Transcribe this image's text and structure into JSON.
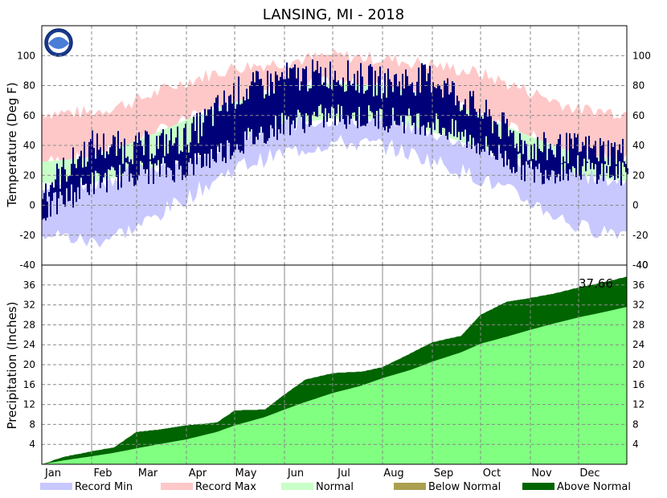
{
  "colors": {
    "record_min": "#c8c8ff",
    "record_max": "#ffc8c8",
    "normal": "#c8ffc8",
    "observed": "#000078",
    "normal_precip": "#80ff80",
    "above_normal": "#006400",
    "below_normal": "#aaa050",
    "grid": "#8a8a8a"
  },
  "logo": {
    "text": "NOAA",
    "icon": "noaa-logo-icon"
  },
  "chart_data": [
    {
      "type": "area",
      "title": "LANSING, MI - 2018",
      "xlabel": "",
      "ylabel": "Temperature (Deg F)",
      "ylim": [
        -40,
        120
      ],
      "yticks": [
        -40,
        -20,
        0,
        20,
        40,
        60,
        80,
        100
      ],
      "categories": [
        "Jan",
        "Feb",
        "Mar",
        "Apr",
        "May",
        "Jun",
        "Jul",
        "Aug",
        "Sep",
        "Oct",
        "Nov",
        "Dec"
      ],
      "grid": true,
      "x": [
        1,
        32,
        60,
        91,
        121,
        152,
        182,
        213,
        244,
        274,
        305,
        335,
        365
      ],
      "series": [
        {
          "name": "Record Max",
          "values": [
            62,
            62,
            70,
            83,
            92,
            96,
            100,
            98,
            94,
            88,
            76,
            64,
            62
          ]
        },
        {
          "name": "Normal High",
          "values": [
            29,
            32,
            43,
            57,
            69,
            78,
            82,
            80,
            73,
            60,
            46,
            34,
            30
          ]
        },
        {
          "name": "Normal Low",
          "values": [
            15,
            15,
            22,
            33,
            44,
            54,
            58,
            57,
            49,
            38,
            29,
            20,
            16
          ]
        },
        {
          "name": "Record Min",
          "values": [
            -18,
            -25,
            -15,
            5,
            25,
            35,
            42,
            40,
            30,
            18,
            2,
            -15,
            -18
          ]
        },
        {
          "name": "Observed High",
          "values": [
            10,
            40,
            38,
            45,
            75,
            85,
            88,
            82,
            85,
            62,
            38,
            38,
            35
          ]
        },
        {
          "name": "Observed Low",
          "values": [
            -5,
            15,
            22,
            25,
            40,
            55,
            60,
            58,
            55,
            40,
            22,
            25,
            20
          ]
        }
      ]
    },
    {
      "type": "area",
      "xlabel": "",
      "ylabel": "Precipitation (Inches)",
      "ylim": [
        0,
        40
      ],
      "yticks": [
        4,
        8,
        12,
        16,
        20,
        24,
        28,
        32,
        36
      ],
      "categories": [
        "Jan",
        "Feb",
        "Mar",
        "Apr",
        "May",
        "Jun",
        "Jul",
        "Aug",
        "Sep",
        "Oct",
        "Nov",
        "Dec"
      ],
      "grid": true,
      "annotation": "37.66",
      "x": [
        1,
        15,
        32,
        46,
        60,
        75,
        91,
        110,
        121,
        140,
        152,
        165,
        182,
        200,
        213,
        230,
        244,
        262,
        274,
        290,
        305,
        320,
        335,
        350,
        365
      ],
      "series": [
        {
          "name": "Normal",
          "values": [
            0,
            0.8,
            1.6,
            2.3,
            3.2,
            4.1,
            5.0,
            6.5,
            7.8,
            9.5,
            11.0,
            12.5,
            14.3,
            15.8,
            17.3,
            18.9,
            20.6,
            22.5,
            24.2,
            25.6,
            27.0,
            28.3,
            29.5,
            30.5,
            31.6
          ]
        },
        {
          "name": "Observed",
          "values": [
            0,
            1.5,
            2.6,
            3.4,
            6.5,
            7.0,
            7.8,
            8.4,
            10.8,
            11.0,
            14.0,
            17.0,
            18.3,
            18.6,
            19.5,
            22.2,
            24.5,
            25.8,
            30.0,
            32.6,
            33.4,
            34.3,
            35.5,
            36.5,
            37.66
          ]
        }
      ]
    }
  ],
  "legend": [
    {
      "label": "Record Min",
      "color": "#c8c8ff"
    },
    {
      "label": "Record Max",
      "color": "#ffc8c8"
    },
    {
      "label": "Normal",
      "color": "#c8ffc8"
    },
    {
      "label": "Below Normal",
      "color": "#aaa050"
    },
    {
      "label": "Above Normal",
      "color": "#006400"
    }
  ]
}
